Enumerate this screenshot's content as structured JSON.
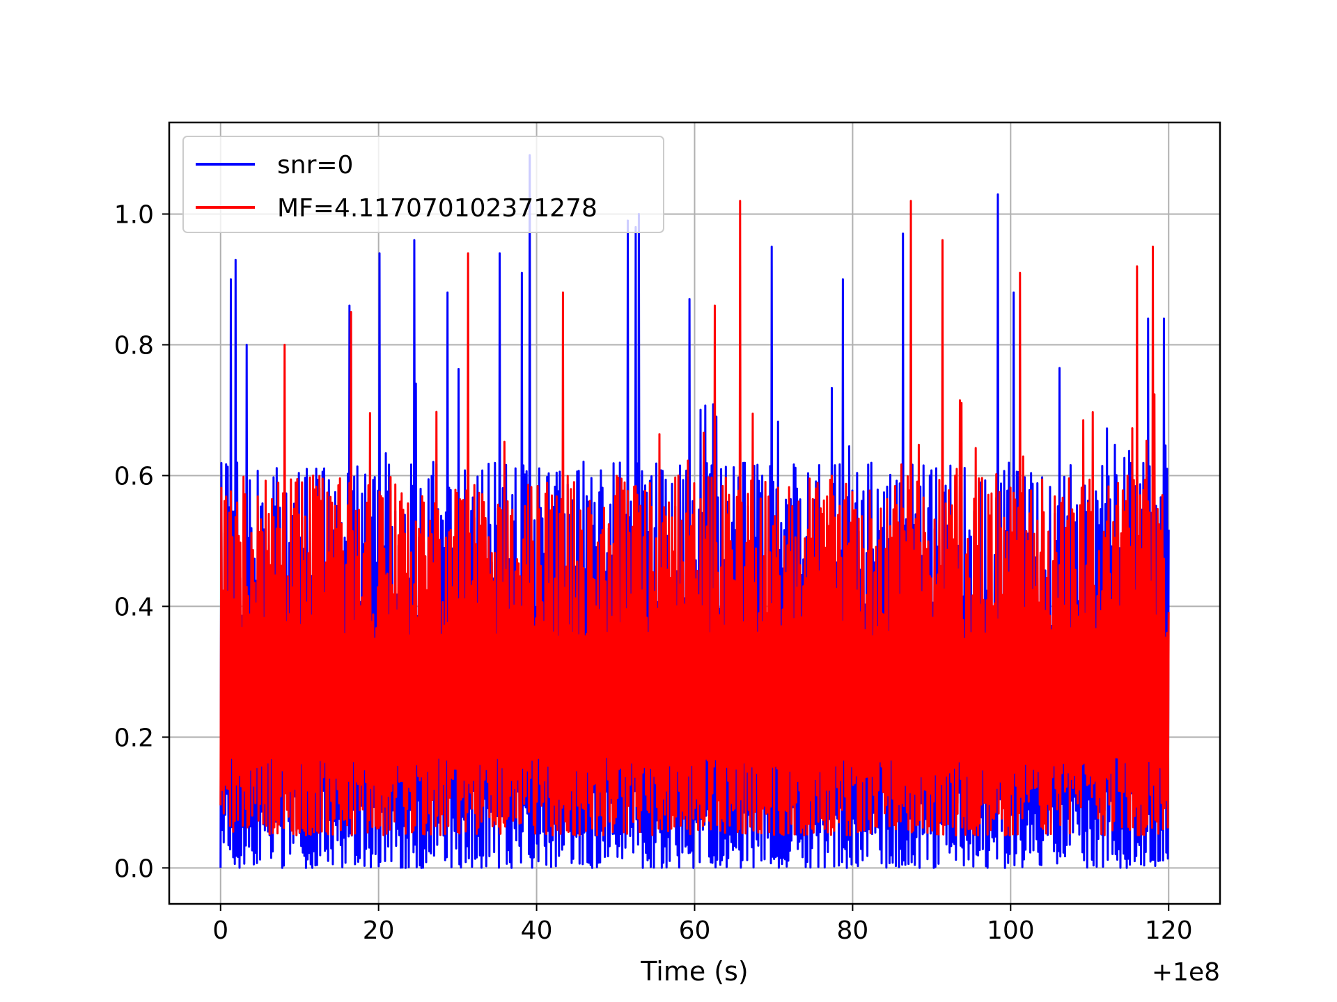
{
  "chart_data": {
    "type": "line",
    "title": "",
    "xlabel": "Time (s)",
    "ylabel": "",
    "x_offset_label": "+1e8",
    "xlim": [
      -6.5,
      126.5
    ],
    "ylim": [
      -0.055,
      1.14
    ],
    "x_ticks": [
      0,
      20,
      40,
      60,
      80,
      100,
      120
    ],
    "x_tick_labels": [
      "0",
      "20",
      "40",
      "60",
      "80",
      "100",
      "120"
    ],
    "y_ticks": [
      0.0,
      0.2,
      0.4,
      0.6,
      0.8,
      1.0
    ],
    "y_tick_labels": [
      "0.0",
      "0.2",
      "0.4",
      "0.6",
      "0.8",
      "1.0"
    ],
    "grid": true,
    "legend_position": "top-left",
    "x_range": [
      0,
      120
    ],
    "series": [
      {
        "name": "snr=0",
        "color": "#0000ff",
        "sample_count": 1200,
        "value_range": [
          0.0,
          1.09
        ],
        "typical_range": [
          0.0,
          0.62
        ],
        "peaks": [
          {
            "x": 1.2,
            "y": 0.9
          },
          {
            "x": 1.8,
            "y": 0.93
          },
          {
            "x": 3.3,
            "y": 0.8
          },
          {
            "x": 16.2,
            "y": 0.86
          },
          {
            "x": 20.1,
            "y": 0.94
          },
          {
            "x": 24.5,
            "y": 0.96
          },
          {
            "x": 28.7,
            "y": 0.88
          },
          {
            "x": 35.2,
            "y": 0.94
          },
          {
            "x": 39.0,
            "y": 1.09
          },
          {
            "x": 38.1,
            "y": 0.91
          },
          {
            "x": 51.4,
            "y": 0.99
          },
          {
            "x": 52.4,
            "y": 0.98
          },
          {
            "x": 52.8,
            "y": 1.0
          },
          {
            "x": 59.2,
            "y": 0.87
          },
          {
            "x": 69.7,
            "y": 0.95
          },
          {
            "x": 78.8,
            "y": 0.9
          },
          {
            "x": 86.4,
            "y": 0.97
          },
          {
            "x": 98.3,
            "y": 1.03
          },
          {
            "x": 100.3,
            "y": 0.88
          },
          {
            "x": 117.4,
            "y": 0.84
          },
          {
            "x": 119.3,
            "y": 0.84
          }
        ]
      },
      {
        "name": "MF=4.117070102371278",
        "color": "#ff0000",
        "sample_count": 1200,
        "value_range": [
          0.0,
          1.02
        ],
        "typical_range": [
          0.05,
          0.6
        ],
        "peaks": [
          {
            "x": 8.1,
            "y": 0.8
          },
          {
            "x": 16.4,
            "y": 0.85
          },
          {
            "x": 31.3,
            "y": 0.94
          },
          {
            "x": 43.3,
            "y": 0.88
          },
          {
            "x": 62.5,
            "y": 0.86
          },
          {
            "x": 65.7,
            "y": 1.02
          },
          {
            "x": 87.3,
            "y": 1.02
          },
          {
            "x": 91.4,
            "y": 0.96
          },
          {
            "x": 101.2,
            "y": 0.91
          },
          {
            "x": 116.0,
            "y": 0.92
          },
          {
            "x": 118.0,
            "y": 0.95
          }
        ]
      }
    ]
  }
}
